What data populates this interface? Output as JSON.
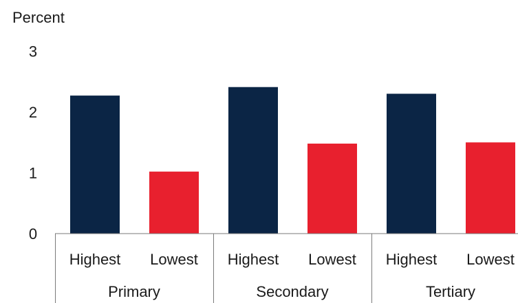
{
  "chart_data": {
    "type": "bar",
    "ylabel": "Percent",
    "ylim": [
      0,
      3
    ],
    "yticks": [
      "0",
      "1",
      "2",
      "3"
    ],
    "groups": [
      "Primary",
      "Secondary",
      "Tertiary"
    ],
    "bar_labels": [
      "Highest",
      "Lowest"
    ],
    "series": [
      {
        "values": [
          2.27,
          2.41,
          2.3
        ]
      },
      {
        "values": [
          1.02,
          1.48,
          1.5
        ]
      }
    ],
    "colors": {
      "highest": "#0b2545",
      "lowest": "#e8202e"
    },
    "grid": false,
    "legend": "none"
  }
}
